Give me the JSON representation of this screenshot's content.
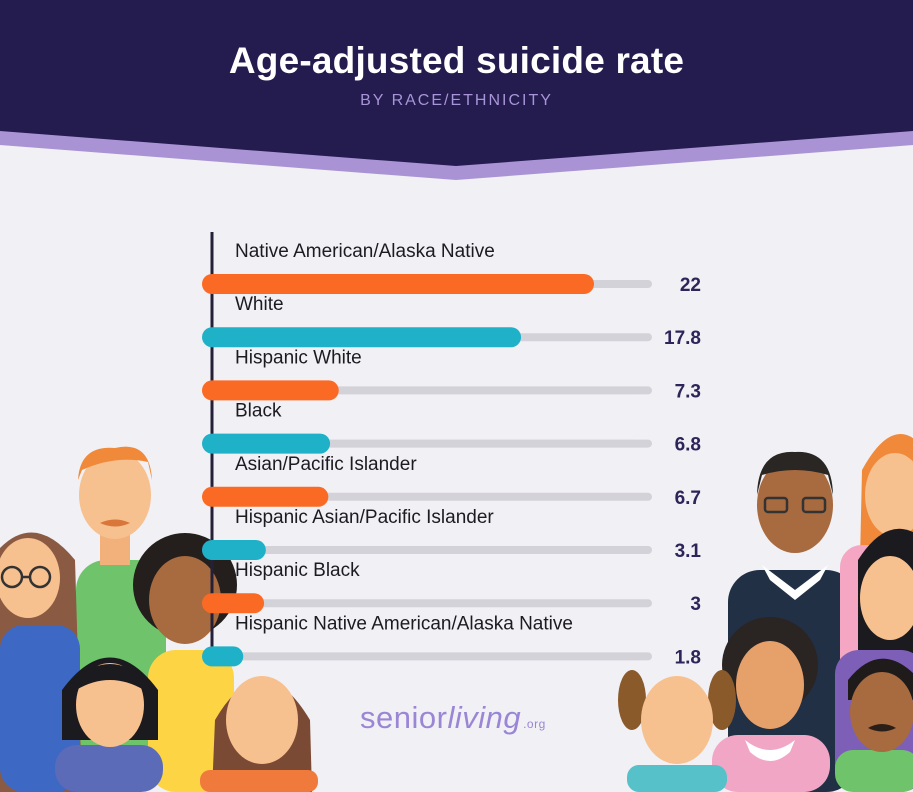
{
  "title": "Age-adjusted suicide rate",
  "subtitle": "BY RACE/ETHNICITY",
  "brand": {
    "name_part1": "senior",
    "name_part2": "living",
    "tld": ".org"
  },
  "colors": {
    "orange": "#fb6a24",
    "teal": "#1fb1c7",
    "track": "#d3d2d8",
    "value_text": "#2d2459",
    "header_dark": "#241b4f",
    "header_light": "#a993d4"
  },
  "chart_data": {
    "type": "bar",
    "orientation": "horizontal",
    "categories": [
      "Native American/Alaska Native",
      "White",
      "Hispanic White",
      "Black",
      "Asian/Pacific Islander",
      "Hispanic Asian/Pacific Islander",
      "Hispanic Black",
      "Hispanic Native American/Alaska Native"
    ],
    "values": [
      22,
      17.8,
      7.3,
      6.8,
      6.7,
      3.1,
      3,
      1.8
    ],
    "value_labels": [
      "22",
      "17.8",
      "7.3",
      "6.8",
      "6.7",
      "3.1",
      "3",
      "1.8"
    ],
    "bar_colors": [
      "orange",
      "teal",
      "orange",
      "teal",
      "orange",
      "teal",
      "orange",
      "teal"
    ],
    "title": "Age-adjusted suicide rate",
    "subtitle": "BY RACE/ETHNICITY",
    "xlim": [
      0,
      25
    ],
    "grid": false,
    "legend": "none"
  }
}
